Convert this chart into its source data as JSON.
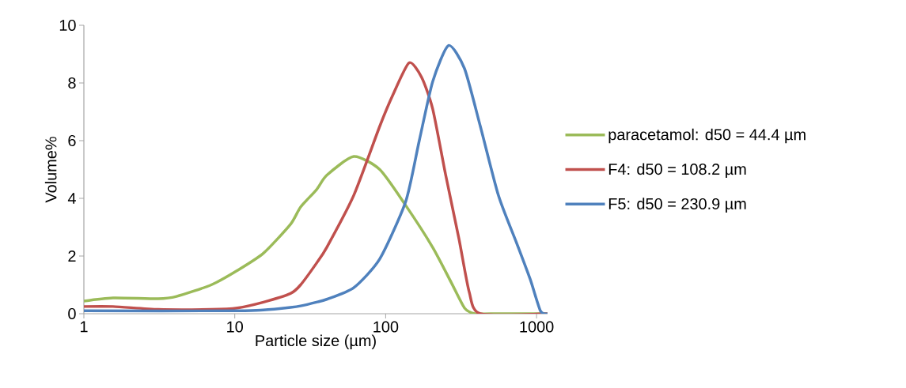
{
  "chart_data": {
    "type": "line",
    "xlabel": "Particle size (µm)",
    "ylabel": "Volume%",
    "log": "x",
    "xlim": [
      1,
      1183
    ],
    "xticks": [
      1,
      10,
      100,
      1000
    ],
    "ylim": [
      0,
      10
    ],
    "yticks": [
      0,
      2,
      4,
      6,
      8,
      10
    ],
    "grid": false,
    "legend": "right",
    "series": [
      {
        "name": "paracetamol: d50 = 44.4 µm",
        "color": "#9bbb59",
        "x": [
          1,
          1.56,
          3.11,
          4.11,
          6.98,
          10.4,
          15.5,
          23.4,
          27.3,
          34.8,
          40.7,
          61.4,
          91.4,
          136,
          205,
          271,
          333,
          389,
          496,
          1183
        ],
        "values": [
          0.44,
          0.55,
          0.52,
          0.6,
          1.0,
          1.5,
          2.1,
          3.1,
          3.7,
          4.3,
          4.8,
          5.45,
          5.0,
          3.75,
          2.3,
          1.1,
          0.2,
          0,
          0,
          0
        ]
      },
      {
        "name": "F4: d50 = 108.2 µm",
        "color": "#c0504d",
        "x": [
          1,
          1.56,
          3.11,
          6.98,
          10.4,
          15.5,
          23.4,
          27.3,
          34.8,
          40.7,
          61.4,
          91.4,
          112,
          143,
          173,
          205,
          249,
          306,
          358,
          424,
          1183
        ],
        "values": [
          0.25,
          0.25,
          0.15,
          0.15,
          0.2,
          0.4,
          0.7,
          1.0,
          1.75,
          2.3,
          4.1,
          6.5,
          7.6,
          8.7,
          8.2,
          7.1,
          4.85,
          2.6,
          0.75,
          0,
          0
        ]
      },
      {
        "name": "F5: d50 = 230.9 µm",
        "color": "#4f81bd",
        "x": [
          1,
          10.4,
          15.5,
          23.4,
          27.3,
          34.8,
          40.7,
          61.4,
          91.4,
          136,
          167,
          205,
          261,
          333,
          424,
          559,
          738,
          907,
          1061,
          1183
        ],
        "values": [
          0.1,
          0.1,
          0.13,
          0.22,
          0.27,
          0.4,
          0.5,
          0.9,
          1.9,
          3.9,
          6.0,
          8.05,
          9.3,
          8.5,
          6.5,
          4.1,
          2.45,
          1.2,
          0.1,
          0
        ]
      }
    ]
  }
}
